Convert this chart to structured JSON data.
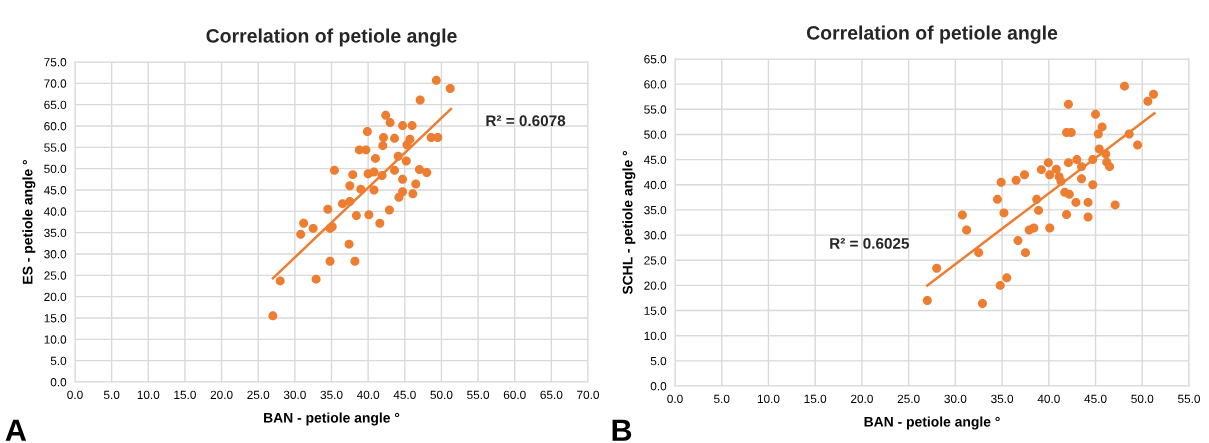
{
  "chart_data": [
    {
      "type": "scatter",
      "title": "Correlation of petiole angle",
      "xlabel": "BAN - petiole angle °",
      "ylabel": "ES - petiole angle °",
      "annotations": [
        "R² = 0.6078",
        "A"
      ],
      "xlim": [
        0,
        70
      ],
      "ylim": [
        0,
        75
      ],
      "xticks": [
        {
          "value": 0,
          "label": "0.0"
        },
        {
          "value": 5,
          "label": "5.0"
        },
        {
          "value": 10,
          "label": "10.0"
        },
        {
          "value": 15,
          "label": "15.0"
        },
        {
          "value": 20,
          "label": "20.0"
        },
        {
          "value": 25,
          "label": "25.0"
        },
        {
          "value": 30,
          "label": "30.0"
        },
        {
          "value": 35,
          "label": "35.0"
        },
        {
          "value": 40,
          "label": "40.0"
        },
        {
          "value": 45,
          "label": "45.0"
        },
        {
          "value": 50,
          "label": "50.0"
        },
        {
          "value": 55,
          "label": "55.0"
        },
        {
          "value": 60,
          "label": "60.0"
        },
        {
          "value": 65,
          "label": "65.0"
        },
        {
          "value": 70,
          "label": "70.0"
        }
      ],
      "yticks": [
        {
          "value": 0,
          "label": "0.0"
        },
        {
          "value": 5,
          "label": "5.0"
        },
        {
          "value": 10,
          "label": "10.0"
        },
        {
          "value": 15,
          "label": "15.0"
        },
        {
          "value": 20,
          "label": "20.0"
        },
        {
          "value": 25,
          "label": "25.0"
        },
        {
          "value": 30,
          "label": "30.0"
        },
        {
          "value": 35,
          "label": "35.0"
        },
        {
          "value": 40,
          "label": "40.0"
        },
        {
          "value": 45,
          "label": "45.0"
        },
        {
          "value": 50,
          "label": "50.0"
        },
        {
          "value": 55,
          "label": "55.0"
        },
        {
          "value": 60,
          "label": "60.0"
        },
        {
          "value": 65,
          "label": "65.0"
        },
        {
          "value": 70,
          "label": "70.0"
        },
        {
          "value": 75,
          "label": "75.0"
        }
      ],
      "grid": true,
      "marker": "circle",
      "series": [
        {
          "color": "#ed7d31",
          "x": [
            27.0,
            28.0,
            30.8,
            31.2,
            32.5,
            32.9,
            34.5,
            34.8,
            34.8,
            35.1,
            35.4,
            36.5,
            37.5,
            37.4,
            37.5,
            37.9,
            38.2,
            38.4,
            38.8,
            39.0,
            39.7,
            39.9,
            40.0,
            40.1,
            40.8,
            40.8,
            41.0,
            41.6,
            41.9,
            42.0,
            42.1,
            42.4,
            42.9,
            43.0,
            43.6,
            43.6,
            44.1,
            44.2,
            44.7,
            44.7,
            44.7,
            45.2,
            45.3,
            45.7,
            46.0,
            46.1,
            46.5,
            47.0,
            47.1,
            48.0,
            48.6,
            49.3,
            49.5,
            51.2
          ],
          "values": [
            15.5,
            23.7,
            34.6,
            37.2,
            36.0,
            24.1,
            40.5,
            28.3,
            36.0,
            36.4,
            49.6,
            41.8,
            46.0,
            32.3,
            42.3,
            48.6,
            28.3,
            39.0,
            54.4,
            45.2,
            54.4,
            58.7,
            48.8,
            39.2,
            49.2,
            45.0,
            52.4,
            37.2,
            48.4,
            55.4,
            57.3,
            62.5,
            40.3,
            60.8,
            57.1,
            49.6,
            52.9,
            43.3,
            60.1,
            44.6,
            47.5,
            51.8,
            55.6,
            56.9,
            60.1,
            44.1,
            46.4,
            49.8,
            66.1,
            49.1,
            57.3,
            70.7,
            57.3,
            68.8
          ]
        },
        {
          "type": "line",
          "color": "#ed7d31",
          "marker": "none",
          "x": [
            27.0,
            51.3
          ],
          "values": [
            24.3,
            64.0
          ]
        }
      ]
    },
    {
      "type": "scatter",
      "title": "Correlation of petiole angle",
      "xlabel": "BAN - petiole angle °",
      "ylabel": "SCHL - petiole angle °",
      "annotations": [
        "R² = 0.6025",
        "B"
      ],
      "xlim": [
        0,
        55
      ],
      "ylim": [
        0,
        65
      ],
      "xticks": [
        {
          "value": 0,
          "label": "0.0"
        },
        {
          "value": 5,
          "label": "5.0"
        },
        {
          "value": 10,
          "label": "10.0"
        },
        {
          "value": 15,
          "label": "15.0"
        },
        {
          "value": 20,
          "label": "20.0"
        },
        {
          "value": 25,
          "label": "25.0"
        },
        {
          "value": 30,
          "label": "30.0"
        },
        {
          "value": 35,
          "label": "35.0"
        },
        {
          "value": 40,
          "label": "40.0"
        },
        {
          "value": 45,
          "label": "45.0"
        },
        {
          "value": 50,
          "label": "50.0"
        },
        {
          "value": 55,
          "label": "55.0"
        }
      ],
      "yticks": [
        {
          "value": 0,
          "label": "0.0"
        },
        {
          "value": 5,
          "label": "5.0"
        },
        {
          "value": 10,
          "label": "10.0"
        },
        {
          "value": 15,
          "label": "15.0"
        },
        {
          "value": 20,
          "label": "20.0"
        },
        {
          "value": 25,
          "label": "25.0"
        },
        {
          "value": 30,
          "label": "30.0"
        },
        {
          "value": 35,
          "label": "35.0"
        },
        {
          "value": 40,
          "label": "40.0"
        },
        {
          "value": 45,
          "label": "45.0"
        },
        {
          "value": 50,
          "label": "50.0"
        },
        {
          "value": 55,
          "label": "55.0"
        },
        {
          "value": 60,
          "label": "60.0"
        },
        {
          "value": 65,
          "label": "65.0"
        }
      ],
      "grid": true,
      "marker": "circle",
      "series": [
        {
          "color": "#ed7d31",
          "x": [
            27.0,
            28.0,
            30.75,
            31.2,
            32.5,
            32.9,
            34.5,
            34.9,
            35.2,
            34.8,
            35.5,
            36.5,
            37.4,
            36.7,
            37.5,
            37.9,
            38.4,
            38.7,
            38.9,
            39.2,
            39.95,
            40.1,
            40.1,
            40.8,
            41.1,
            41.3,
            41.7,
            42.1,
            41.9,
            42.4,
            42.1,
            42.2,
            41.9,
            42.9,
            43.0,
            43.5,
            43.5,
            44.2,
            44.2,
            44.7,
            44.7,
            45.0,
            45.3,
            45.7,
            45.4,
            46.1,
            46.2,
            46.5,
            47.1,
            48.1,
            48.6,
            49.5,
            50.6,
            51.2
          ],
          "values": [
            17.0,
            23.4,
            34.0,
            31.0,
            26.5,
            16.4,
            37.1,
            40.5,
            34.4,
            20.0,
            21.5,
            40.9,
            42.0,
            28.9,
            26.5,
            31.0,
            31.4,
            37.1,
            34.9,
            43.0,
            44.4,
            42.0,
            31.4,
            43.1,
            41.6,
            40.7,
            38.5,
            56.0,
            50.4,
            50.4,
            44.4,
            38.1,
            34.1,
            36.5,
            45.0,
            43.6,
            41.2,
            36.5,
            33.6,
            40.0,
            45.0,
            54.0,
            50.1,
            51.5,
            47.1,
            46.1,
            44.5,
            43.6,
            36.0,
            59.6,
            50.1,
            47.9,
            56.6,
            58.0
          ]
        },
        {
          "type": "line",
          "color": "#ed7d31",
          "marker": "none",
          "x": [
            27.0,
            51.3
          ],
          "values": [
            20.0,
            54.2
          ]
        }
      ]
    }
  ]
}
